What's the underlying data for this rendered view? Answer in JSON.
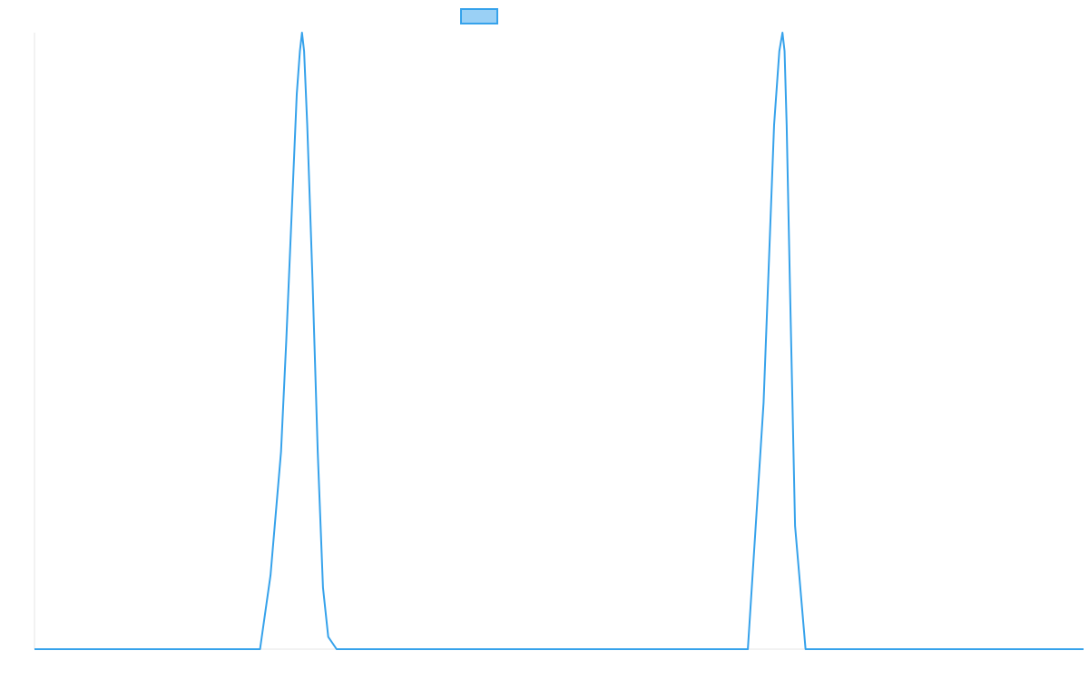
{
  "colors": {
    "series_stroke": "#36a2eb",
    "series_fill": "#9ad0f5",
    "axis": "#e6e6e6"
  },
  "chart_data": {
    "type": "line",
    "title": "",
    "xlabel": "",
    "ylabel": "",
    "xlim": [
      0,
      100
    ],
    "ylim": [
      0,
      1
    ],
    "grid": false,
    "legend": {
      "position": "top",
      "entries": [
        {
          "label": ""
        }
      ]
    },
    "series": [
      {
        "x": [
          0,
          21.5,
          22.5,
          23.5,
          24.0,
          24.5,
          25.0,
          25.3,
          25.5,
          25.7,
          26.0,
          26.5,
          27.0,
          27.5,
          28.0,
          28.8,
          30.0,
          50.0,
          68.0,
          69.5,
          70.5,
          71.0,
          71.3,
          71.5,
          71.7,
          72.0,
          72.5,
          73.5,
          74.5,
          100
        ],
        "y": [
          0,
          0,
          0.12,
          0.32,
          0.5,
          0.7,
          0.9,
          0.97,
          1.0,
          0.97,
          0.85,
          0.6,
          0.32,
          0.1,
          0.02,
          0,
          0,
          0,
          0,
          0.4,
          0.85,
          0.97,
          1.0,
          0.97,
          0.85,
          0.6,
          0.2,
          0.0,
          0,
          0
        ]
      }
    ]
  }
}
